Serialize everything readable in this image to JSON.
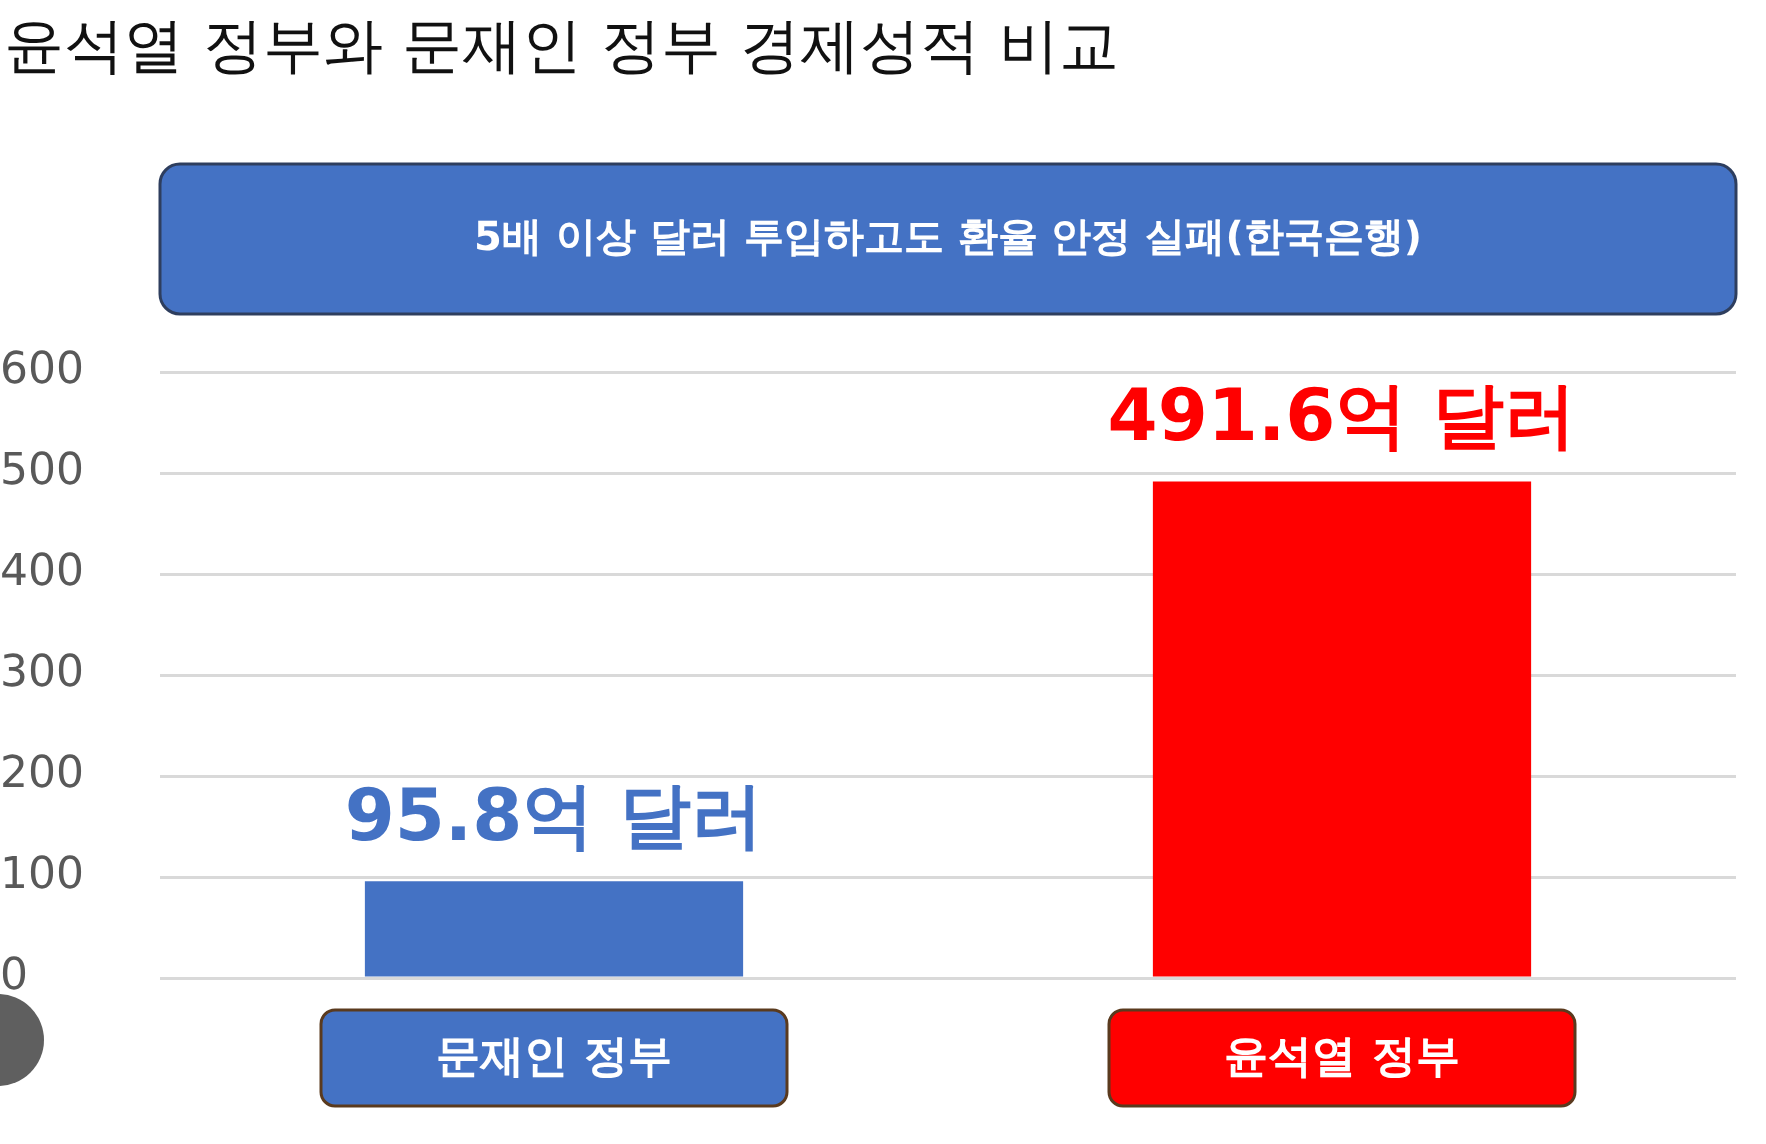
{
  "chart_data": {
    "type": "bar",
    "title": "윤석열 정부와 문재인 정부 경제성적 비교",
    "subtitle": "5배 이상 달러 투입하고도 환율 안정 실패(한국은행)",
    "categories": [
      "문재인 정부",
      "윤석열 정부"
    ],
    "values": [
      95.8,
      491.6
    ],
    "colors": [
      "#4472c4",
      "#ff0000"
    ],
    "value_labels": [
      "95.8억 달러",
      "491.6억 달러"
    ],
    "ylim": [
      0,
      600
    ],
    "yticks": [
      0,
      100,
      200,
      300,
      400,
      500,
      600
    ],
    "grid": "y"
  }
}
